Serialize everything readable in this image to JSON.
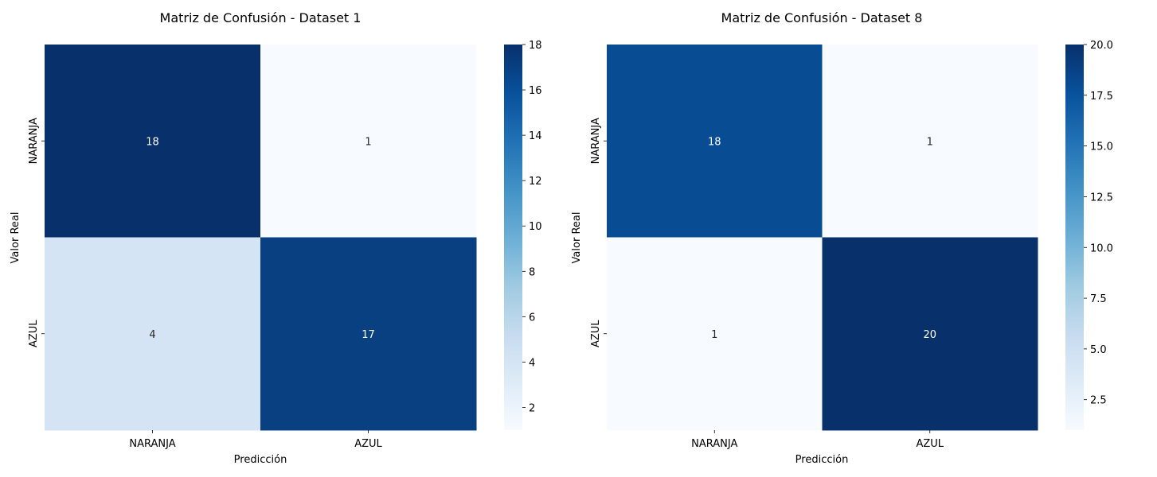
{
  "chart_data": [
    {
      "type": "heatmap",
      "title": "Matriz de Confusión - Dataset 1",
      "xlabel": "Predicción",
      "ylabel": "Valor Real",
      "x_categories": [
        "NARANJA",
        "AZUL"
      ],
      "y_categories": [
        "NARANJA",
        "AZUL"
      ],
      "matrix": [
        [
          18,
          1
        ],
        [
          4,
          17
        ]
      ],
      "colormap": "Blues",
      "vmin": 1,
      "vmax": 18,
      "colorbar_ticks": [
        2,
        4,
        6,
        8,
        10,
        12,
        14,
        16,
        18
      ],
      "colorbar_tick_labels": [
        "2",
        "4",
        "6",
        "8",
        "10",
        "12",
        "14",
        "16",
        "18"
      ]
    },
    {
      "type": "heatmap",
      "title": "Matriz de Confusión - Dataset 8",
      "xlabel": "Predicción",
      "ylabel": "Valor Real",
      "x_categories": [
        "NARANJA",
        "AZUL"
      ],
      "y_categories": [
        "NARANJA",
        "AZUL"
      ],
      "matrix": [
        [
          18,
          1
        ],
        [
          1,
          20
        ]
      ],
      "colormap": "Blues",
      "vmin": 1,
      "vmax": 20,
      "colorbar_ticks": [
        2.5,
        5.0,
        7.5,
        10.0,
        12.5,
        15.0,
        17.5,
        20.0
      ],
      "colorbar_tick_labels": [
        "2.5",
        "5.0",
        "7.5",
        "10.0",
        "12.5",
        "15.0",
        "17.5",
        "20.0"
      ]
    }
  ]
}
